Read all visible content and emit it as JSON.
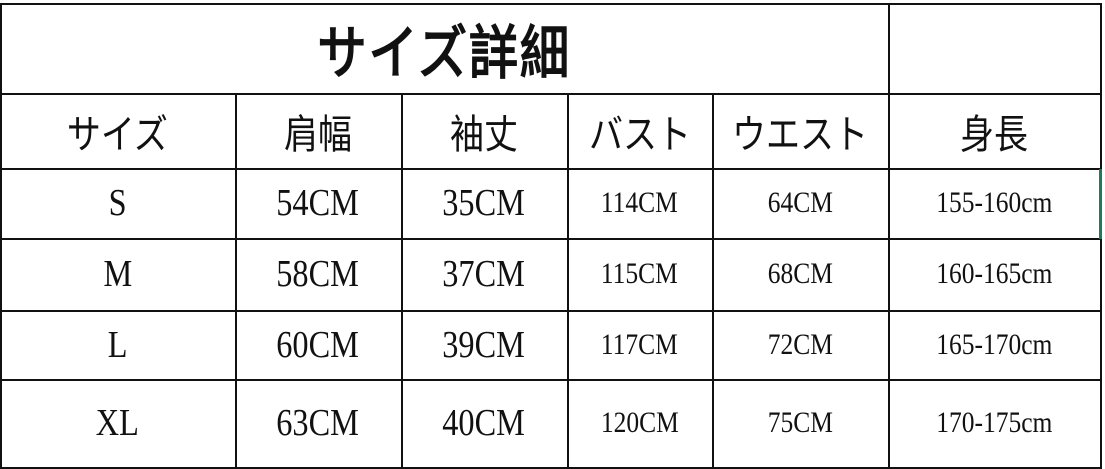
{
  "title": "サイズ詳細",
  "headers": [
    "サイズ",
    "肩幅",
    "袖丈",
    "バスト",
    "ウエスト",
    "身長"
  ],
  "rows": [
    [
      "S",
      "54CM",
      "35CM",
      "114CM",
      "64CM",
      "155-160cm"
    ],
    [
      "M",
      "58CM",
      "37CM",
      "115CM",
      "68CM",
      "160-165cm"
    ],
    [
      "L",
      "60CM",
      "39CM",
      "117CM",
      "72CM",
      "165-170cm"
    ],
    [
      "XL",
      "63CM",
      "40CM",
      "120CM",
      "75CM",
      "170-175cm"
    ]
  ],
  "colors": {
    "border": "#111111",
    "selection": "#1e7a5a"
  }
}
